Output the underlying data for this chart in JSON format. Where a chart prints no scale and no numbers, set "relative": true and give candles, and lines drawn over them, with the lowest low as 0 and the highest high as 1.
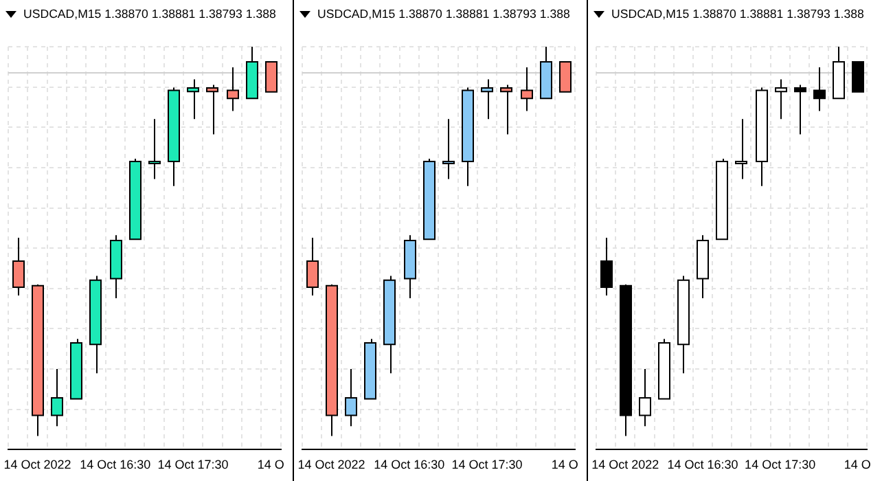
{
  "chart_data": [
    {
      "type": "candlestick",
      "title": "USDCAD,M15 1.38870 1.38881 1.38793 1.388",
      "relative": true,
      "grid": true,
      "categories": [
        null,
        "14 Oct 2022",
        null,
        null,
        null,
        "14 Oct 16:30",
        null,
        null,
        null,
        "14 Oct 17:30",
        null,
        null,
        null,
        "14 O"
      ],
      "ohlc": [
        [
          0.449,
          0.509,
          0.361,
          0.382
        ],
        [
          0.386,
          0.389,
          0,
          0.053
        ],
        [
          0.053,
          0.172,
          0.025,
          0.098
        ],
        [
          0.095,
          0.249,
          0.095,
          0.239
        ],
        [
          0.235,
          0.411,
          0.161,
          0.4
        ],
        [
          0.404,
          0.516,
          0.354,
          0.502
        ],
        [
          0.505,
          0.712,
          0.505,
          0.705
        ],
        [
          0.704,
          0.814,
          0.66,
          0.705
        ],
        [
          0.705,
          0.895,
          0.642,
          0.888
        ],
        [
          0.885,
          0.916,
          0.814,
          0.894
        ],
        [
          0.894,
          0.902,
          0.775,
          0.885
        ],
        [
          0.888,
          0.947,
          0.835,
          0.867
        ],
        [
          0.867,
          1,
          0.867,
          0.961
        ],
        [
          0.961,
          0.961,
          0.884,
          0.884
        ]
      ],
      "colors": [
        "#fa8072",
        "#fa8072",
        "#1de9b6",
        "#1de9b6",
        "#1de9b6",
        "#1de9b6",
        "#1de9b6",
        "#1de9b6",
        "#1de9b6",
        "#1de9b6",
        "#fa8072",
        "#fa8072",
        "#1de9b6",
        "#fa8072"
      ],
      "ref_lines": [
        {
          "axis": "y",
          "value": 0.933,
          "color": "#d0d0d0"
        }
      ]
    },
    {
      "type": "candlestick",
      "title": "USDCAD,M15 1.38870 1.38881 1.38793 1.388",
      "relative": true,
      "grid": true,
      "categories": [
        null,
        "14 Oct 2022",
        null,
        null,
        null,
        "14 Oct 16:30",
        null,
        null,
        null,
        "14 Oct 17:30",
        null,
        null,
        null,
        "14 O"
      ],
      "ohlc": [
        [
          0.449,
          0.509,
          0.361,
          0.382
        ],
        [
          0.386,
          0.389,
          0,
          0.053
        ],
        [
          0.053,
          0.172,
          0.025,
          0.098
        ],
        [
          0.095,
          0.249,
          0.095,
          0.239
        ],
        [
          0.235,
          0.411,
          0.161,
          0.4
        ],
        [
          0.404,
          0.516,
          0.354,
          0.502
        ],
        [
          0.505,
          0.712,
          0.505,
          0.705
        ],
        [
          0.704,
          0.814,
          0.66,
          0.705
        ],
        [
          0.705,
          0.895,
          0.642,
          0.888
        ],
        [
          0.885,
          0.916,
          0.814,
          0.894
        ],
        [
          0.894,
          0.902,
          0.775,
          0.885
        ],
        [
          0.888,
          0.947,
          0.835,
          0.867
        ],
        [
          0.867,
          1,
          0.867,
          0.961
        ],
        [
          0.961,
          0.961,
          0.884,
          0.884
        ]
      ],
      "colors": [
        "#fa8072",
        "#fa8072",
        "#87c8f5",
        "#87c8f5",
        "#87c8f5",
        "#87c8f5",
        "#87c8f5",
        "#87c8f5",
        "#87c8f5",
        "#87c8f5",
        "#fa8072",
        "#fa8072",
        "#87c8f5",
        "#fa8072"
      ],
      "ref_lines": [
        {
          "axis": "y",
          "value": 0.933,
          "color": "#d0d0d0"
        }
      ]
    },
    {
      "type": "candlestick",
      "title": "USDCAD,M15 1.38870 1.38881 1.38793 1.388",
      "relative": true,
      "grid": true,
      "categories": [
        null,
        "14 Oct 2022",
        null,
        null,
        null,
        "14 Oct 16:30",
        null,
        null,
        null,
        "14 Oct 17:30",
        null,
        null,
        null,
        "14 O"
      ],
      "ohlc": [
        [
          0.449,
          0.509,
          0.361,
          0.382
        ],
        [
          0.386,
          0.389,
          0,
          0.053
        ],
        [
          0.053,
          0.172,
          0.025,
          0.098
        ],
        [
          0.095,
          0.249,
          0.095,
          0.239
        ],
        [
          0.235,
          0.411,
          0.161,
          0.4
        ],
        [
          0.404,
          0.516,
          0.354,
          0.502
        ],
        [
          0.505,
          0.712,
          0.505,
          0.705
        ],
        [
          0.704,
          0.814,
          0.66,
          0.705
        ],
        [
          0.705,
          0.895,
          0.642,
          0.888
        ],
        [
          0.885,
          0.916,
          0.814,
          0.894
        ],
        [
          0.894,
          0.902,
          0.775,
          0.885
        ],
        [
          0.888,
          0.947,
          0.835,
          0.867
        ],
        [
          0.867,
          1,
          0.867,
          0.961
        ],
        [
          0.961,
          0.961,
          0.884,
          0.884
        ]
      ],
      "colors": [
        "#000000",
        "#000000",
        "#ffffff",
        "#ffffff",
        "#ffffff",
        "#ffffff",
        "#ffffff",
        "#ffffff",
        "#ffffff",
        "#ffffff",
        "#000000",
        "#000000",
        "#ffffff",
        "#000000"
      ],
      "ref_lines": [
        {
          "axis": "y",
          "value": 0.933,
          "color": "#d0d0d0"
        }
      ]
    }
  ]
}
